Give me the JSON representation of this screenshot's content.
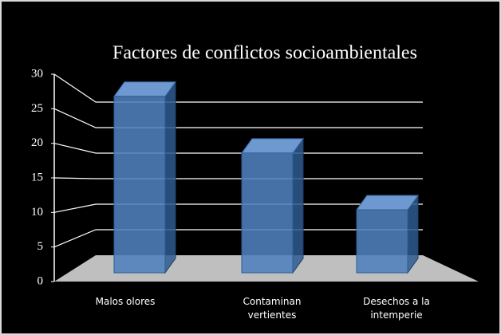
{
  "chart_data": {
    "type": "bar",
    "title": "Factores de conflictos socioambientales",
    "categories": [
      "Malos olores",
      "Contaminan vertientes",
      "Desechos a la intemperie"
    ],
    "values": [
      28,
      19,
      10
    ],
    "color": "#4f81bd",
    "ylim": [
      0,
      30
    ],
    "yticks": [
      0,
      5,
      10,
      15,
      20,
      25,
      30
    ],
    "grid": true
  }
}
